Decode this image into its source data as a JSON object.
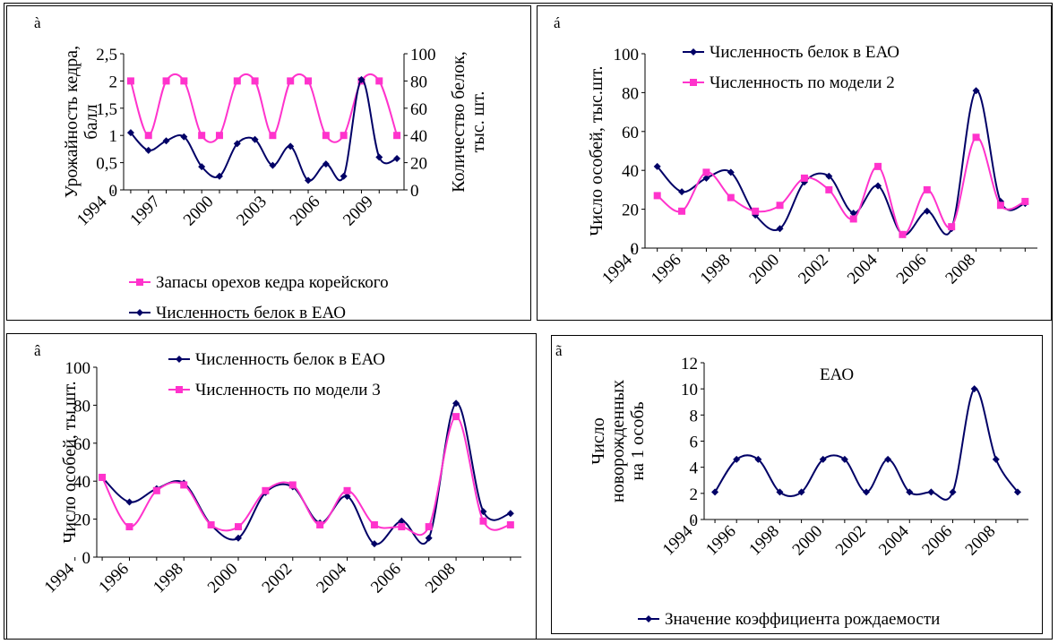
{
  "chart_data": [
    {
      "id": "a",
      "panel_label": "à",
      "type": "line",
      "title": "",
      "x_ticks": [
        "1994",
        "1997",
        "2000",
        "2003",
        "2006",
        "2009"
      ],
      "ylabel": "Урожайность кедра, балл",
      "y2label": "Количество белок, тыс. шт.",
      "y_ticks": [
        "0",
        "0,5",
        "1",
        "1,5",
        "2",
        "2,5"
      ],
      "y2_ticks": [
        "0",
        "20",
        "40",
        "60",
        "80",
        "100"
      ],
      "ylim": [
        0,
        2.5
      ],
      "y2lim": [
        0,
        100
      ],
      "legend_position": "bottom",
      "series": [
        {
          "name": "Запасы орехов кедра корейского",
          "color": "#ff33cc",
          "marker": "square",
          "axis": "y",
          "x": [
            1995,
            1996,
            1997,
            1998,
            1999,
            2000,
            2001,
            2002,
            2003,
            2004,
            2005,
            2006,
            2007,
            2008,
            2009,
            2010
          ],
          "y": [
            2,
            1,
            2,
            2,
            1,
            1,
            2,
            2,
            1,
            2,
            2,
            1,
            1,
            2,
            2,
            1
          ]
        },
        {
          "name": "Численность белок в ЕАО",
          "color": "#000066",
          "marker": "diamond",
          "axis": "y2",
          "x": [
            1995,
            1996,
            1997,
            1998,
            1999,
            2000,
            2001,
            2002,
            2003,
            2004,
            2005,
            2006,
            2007,
            2008,
            2009,
            2010
          ],
          "y": [
            42,
            29,
            36,
            39,
            17,
            10,
            34,
            37,
            18,
            32,
            7,
            19,
            10,
            81,
            24,
            23
          ]
        }
      ]
    },
    {
      "id": "b",
      "panel_label": "á",
      "type": "line",
      "title": "",
      "x_ticks": [
        "1994",
        "1996",
        "1998",
        "2000",
        "2002",
        "2004",
        "2006",
        "2008"
      ],
      "ylabel": "Число особей, тыс.шт.",
      "y_ticks": [
        "0",
        "20",
        "40",
        "60",
        "80",
        "100"
      ],
      "ylim": [
        0,
        100
      ],
      "legend_position": "top",
      "series": [
        {
          "name": "Численность белок в ЕАО",
          "color": "#000066",
          "marker": "diamond",
          "x": [
            1995,
            1996,
            1997,
            1998,
            1999,
            2000,
            2001,
            2002,
            2003,
            2004,
            2005,
            2006,
            2007,
            2008,
            2009,
            2010
          ],
          "y": [
            42,
            29,
            36,
            39,
            17,
            10,
            34,
            37,
            18,
            32,
            7,
            19,
            10,
            81,
            24,
            23
          ]
        },
        {
          "name": "Численность по модели 2",
          "color": "#ff33cc",
          "marker": "square",
          "x": [
            1995,
            1996,
            1997,
            1998,
            1999,
            2000,
            2001,
            2002,
            2003,
            2004,
            2005,
            2006,
            2007,
            2008,
            2009,
            2010
          ],
          "y": [
            27,
            19,
            39,
            26,
            19,
            22,
            36,
            30,
            15,
            42,
            7,
            30,
            11,
            57,
            22,
            24
          ]
        }
      ]
    },
    {
      "id": "c",
      "panel_label": "â",
      "type": "line",
      "title": "",
      "x_ticks": [
        "1994",
        "1996",
        "1998",
        "2000",
        "2002",
        "2004",
        "2006",
        "2008"
      ],
      "ylabel": "Число особей, ты.шт.",
      "y_ticks": [
        "0",
        "20",
        "40",
        "60",
        "80",
        "100"
      ],
      "ylim": [
        0,
        100
      ],
      "legend_position": "top",
      "series": [
        {
          "name": "Численность белок в ЕАО",
          "color": "#000066",
          "marker": "diamond",
          "x": [
            1995,
            1996,
            1997,
            1998,
            1999,
            2000,
            2001,
            2002,
            2003,
            2004,
            2005,
            2006,
            2007,
            2008,
            2009,
            2010
          ],
          "y": [
            42,
            29,
            36,
            39,
            17,
            10,
            34,
            37,
            18,
            32,
            7,
            19,
            10,
            81,
            24,
            23
          ]
        },
        {
          "name": "Численность по модели 3",
          "color": "#ff33cc",
          "marker": "square",
          "x": [
            1995,
            1996,
            1997,
            1998,
            1999,
            2000,
            2001,
            2002,
            2003,
            2004,
            2005,
            2006,
            2007,
            2008,
            2009,
            2010
          ],
          "y": [
            42,
            16,
            35,
            38,
            17,
            16,
            35,
            38,
            17,
            35,
            17,
            16,
            16,
            74,
            19,
            17
          ]
        }
      ]
    },
    {
      "id": "d",
      "panel_label": "ã",
      "type": "line",
      "title": "ЕАО",
      "x_ticks": [
        "1994",
        "1996",
        "1998",
        "2000",
        "2002",
        "2004",
        "2006",
        "2008"
      ],
      "ylabel": "Число новорожденных на 1 особь",
      "y_ticks": [
        "0",
        "2",
        "4",
        "6",
        "8",
        "10",
        "12"
      ],
      "ylim": [
        0,
        12
      ],
      "legend_position": "bottom",
      "series": [
        {
          "name": "Значение коэффициента рождаемости",
          "color": "#000066",
          "marker": "diamond",
          "x": [
            1995,
            1996,
            1997,
            1998,
            1999,
            2000,
            2001,
            2002,
            2003,
            2004,
            2005,
            2006,
            2007,
            2008,
            2009
          ],
          "y": [
            2.1,
            4.6,
            4.6,
            2.1,
            2.1,
            4.6,
            4.6,
            2.1,
            4.6,
            2.1,
            2.1,
            2.1,
            10,
            4.6,
            2.1
          ]
        }
      ]
    }
  ]
}
